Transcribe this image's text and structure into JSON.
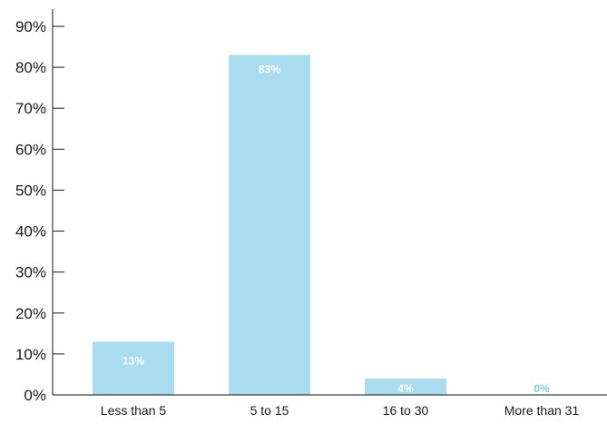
{
  "chart_data": {
    "type": "bar",
    "categories": [
      "Less than 5",
      "5 to 15",
      "16 to 30",
      "More than 31"
    ],
    "values": [
      13,
      83,
      4,
      0
    ],
    "data_labels": [
      "13%",
      "83%",
      "4%",
      "0%"
    ],
    "title": "",
    "xlabel": "",
    "ylabel": "",
    "ylim": [
      0,
      90
    ],
    "y_ticks": [
      0,
      10,
      20,
      30,
      40,
      50,
      60,
      70,
      80,
      90
    ],
    "y_tick_labels": [
      "0%",
      "10%",
      "20%",
      "30%",
      "40%",
      "50%",
      "60%",
      "70%",
      "80%",
      "90%"
    ],
    "grid": false,
    "legend": "none",
    "bar_color": "#a9dcef",
    "label_color_inside": "#ffffff",
    "label_color_outside": "#7fcbe6"
  }
}
